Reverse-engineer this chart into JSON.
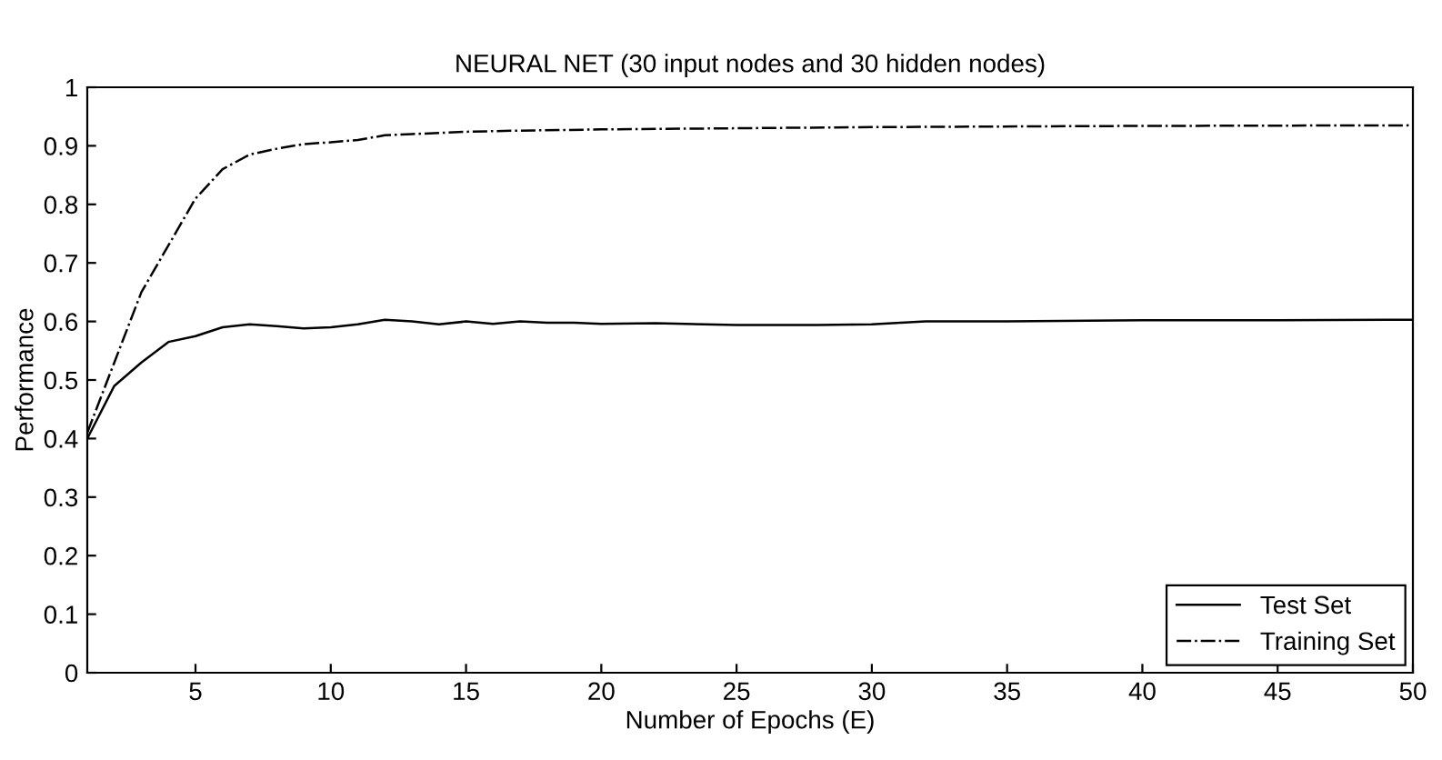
{
  "chart_data": {
    "type": "line",
    "title": "NEURAL NET (30 input nodes and 30 hidden nodes)",
    "xlabel": "Number of Epochs (E)",
    "ylabel": "Performance",
    "xlim": [
      1,
      50
    ],
    "ylim": [
      0,
      1
    ],
    "xticks": [
      5,
      10,
      15,
      20,
      25,
      30,
      35,
      40,
      45,
      50
    ],
    "yticks": [
      0,
      0.1,
      0.2,
      0.3,
      0.4,
      0.5,
      0.6,
      0.7,
      0.8,
      0.9,
      1
    ],
    "grid": false,
    "legend": "bottom right",
    "series": [
      {
        "name": "Test Set",
        "color": "#000000",
        "line_style": "solid",
        "x": [
          1,
          2,
          3,
          4,
          5,
          6,
          7,
          8,
          9,
          10,
          11,
          12,
          13,
          14,
          15,
          16,
          17,
          18,
          19,
          20,
          22,
          25,
          28,
          30,
          32,
          35,
          40,
          45,
          50
        ],
        "values": [
          0.4,
          0.49,
          0.53,
          0.565,
          0.575,
          0.59,
          0.595,
          0.592,
          0.588,
          0.59,
          0.595,
          0.603,
          0.6,
          0.595,
          0.6,
          0.596,
          0.6,
          0.598,
          0.598,
          0.596,
          0.597,
          0.594,
          0.594,
          0.595,
          0.6,
          0.6,
          0.602,
          0.602,
          0.603
        ]
      },
      {
        "name": "Training Set",
        "color": "#000000",
        "line_style": "dashdot",
        "x": [
          1,
          2,
          3,
          4,
          5,
          6,
          7,
          8,
          9,
          10,
          11,
          12,
          13,
          14,
          15,
          17,
          20,
          25,
          30,
          40,
          50
        ],
        "values": [
          0.41,
          0.53,
          0.65,
          0.73,
          0.81,
          0.86,
          0.885,
          0.895,
          0.903,
          0.906,
          0.91,
          0.918,
          0.92,
          0.922,
          0.924,
          0.926,
          0.928,
          0.93,
          0.932,
          0.934,
          0.935
        ]
      }
    ]
  }
}
